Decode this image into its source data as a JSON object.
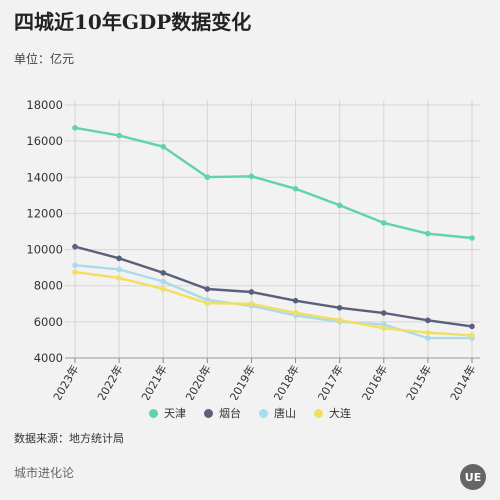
{
  "header": {
    "title": "四城近10年GDP数据变化",
    "unit": "单位：亿元"
  },
  "footer": {
    "source": "数据来源：地方统计局",
    "brand": "城市进化论",
    "logo": "UE"
  },
  "chart_data": {
    "type": "line",
    "title": "四城近10年GDP数据变化",
    "ylabel": "单位：亿元",
    "xlabel": "",
    "ylim": [
      4000,
      18000
    ],
    "yticks": [
      4000,
      6000,
      8000,
      10000,
      12000,
      14000,
      16000,
      18000
    ],
    "grid": true,
    "legend_position": "bottom",
    "categories": [
      "2023年",
      "2022年",
      "2021年",
      "2020年",
      "2019年",
      "2018年",
      "2017年",
      "2016年",
      "2015年",
      "2014年"
    ],
    "series": [
      {
        "name": "天津",
        "color": "#5fd4a8",
        "values": [
          16737,
          16311,
          15695,
          14008,
          14055,
          13363,
          12450,
          11477,
          10879,
          10640
        ]
      },
      {
        "name": "烟台",
        "color": "#5a5f7d",
        "values": [
          10162,
          9515,
          8712,
          7816,
          7653,
          7172,
          6778,
          6489,
          6084,
          5750
        ]
      },
      {
        "name": "唐山",
        "color": "#a8dcea",
        "values": [
          9133,
          8900,
          8231,
          7211,
          6890,
          6350,
          6010,
          5850,
          5100,
          5100
        ]
      },
      {
        "name": "大连",
        "color": "#f3dd62",
        "values": [
          8752,
          8430,
          7825,
          7030,
          7001,
          6500,
          6100,
          5650,
          5400,
          5250
        ]
      }
    ]
  }
}
